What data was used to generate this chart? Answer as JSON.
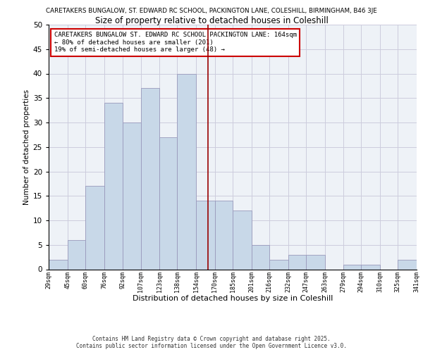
{
  "title_top": "CARETAKERS BUNGALOW, ST. EDWARD RC SCHOOL, PACKINGTON LANE, COLESHILL, BIRMINGHAM, B46 3JE",
  "title_main": "Size of property relative to detached houses in Coleshill",
  "xlabel": "Distribution of detached houses by size in Coleshill",
  "ylabel": "Number of detached properties",
  "bin_labels": [
    "29sqm",
    "45sqm",
    "60sqm",
    "76sqm",
    "92sqm",
    "107sqm",
    "123sqm",
    "138sqm",
    "154sqm",
    "170sqm",
    "185sqm",
    "201sqm",
    "216sqm",
    "232sqm",
    "247sqm",
    "263sqm",
    "279sqm",
    "294sqm",
    "310sqm",
    "325sqm",
    "341sqm"
  ],
  "bin_edges": [
    29,
    45,
    60,
    76,
    92,
    107,
    123,
    138,
    154,
    170,
    185,
    201,
    216,
    232,
    247,
    263,
    279,
    294,
    310,
    325,
    341
  ],
  "bar_values": [
    2,
    6,
    17,
    34,
    30,
    37,
    27,
    40,
    14,
    14,
    12,
    5,
    2,
    3,
    3,
    0,
    1,
    1,
    0,
    2,
    0
  ],
  "bar_color": "#c8d8e8",
  "bar_edge_color": "#9999bb",
  "grid_color": "#ccccdd",
  "vline_x": 164,
  "vline_color": "#990000",
  "annotation_text": "CARETAKERS BUNGALOW ST. EDWARD RC SCHOOL PACKINGTON LANE: 164sqm\n← 80% of detached houses are smaller (201)\n19% of semi-detached houses are larger (48) →",
  "annotation_box_color": "#ffffff",
  "annotation_box_edge": "#cc0000",
  "footer_text": "Contains HM Land Registry data © Crown copyright and database right 2025.\nContains public sector information licensed under the Open Government Licence v3.0.",
  "ylim": [
    0,
    50
  ],
  "yticks": [
    0,
    5,
    10,
    15,
    20,
    25,
    30,
    35,
    40,
    45,
    50
  ],
  "bg_color": "#eef2f7"
}
